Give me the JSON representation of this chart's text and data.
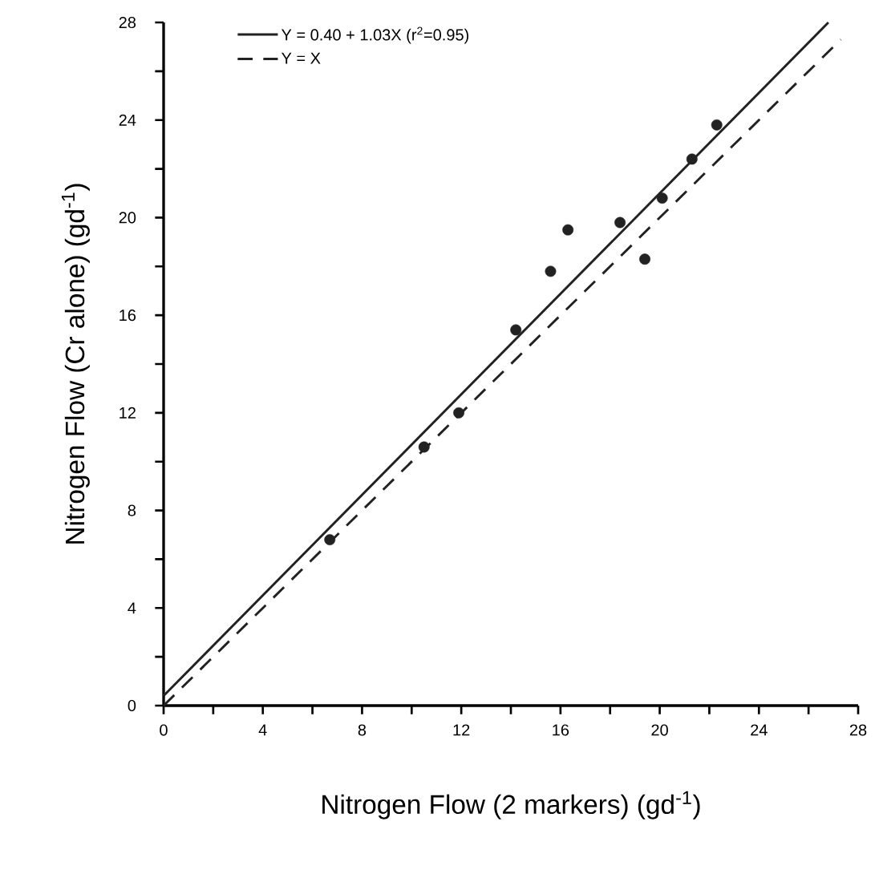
{
  "chart_data": {
    "type": "scatter",
    "xlabel": "Nitrogen Flow (2 markers)  (gd$^{-1}$)",
    "ylabel": "Nitrogen Flow  (Cr alone)  (gd$^{-1}$)",
    "xlim": [
      0,
      28
    ],
    "ylim": [
      0,
      28
    ],
    "xticks": [
      0,
      {
        "value": 2,
        "label": null
      },
      4,
      {
        "value": 6,
        "label": null
      },
      8,
      {
        "value": 10,
        "label": null
      },
      12,
      {
        "value": 14,
        "label": null
      },
      16,
      {
        "value": 18,
        "label": null
      },
      20,
      {
        "value": 22,
        "label": null
      },
      24,
      {
        "value": 26,
        "label": null
      },
      28
    ],
    "yticks": [
      0,
      {
        "value": 2,
        "label": null
      },
      4,
      {
        "value": 6,
        "label": null
      },
      8,
      {
        "value": 10,
        "label": null
      },
      12,
      {
        "value": 14,
        "label": null
      },
      16,
      {
        "value": 18,
        "label": null
      },
      20,
      {
        "value": 22,
        "label": null
      },
      24,
      {
        "value": 26,
        "label": null
      },
      28
    ],
    "grid": false,
    "legend": "top left",
    "series": [
      {
        "marker": "circle",
        "color": "#222222",
        "x": [
          6.7,
          10.5,
          11.9,
          14.2,
          15.6,
          16.3,
          18.4,
          19.4,
          20.1,
          21.3,
          22.3
        ],
        "values": [
          6.8,
          10.6,
          12.0,
          15.4,
          17.8,
          19.5,
          19.8,
          18.3,
          20.8,
          22.4,
          23.8
        ]
      },
      {
        "type": "line",
        "name": "Y = 0.40 + 1.03X  (r$^{2}$=0.95)",
        "color": "#222222",
        "marker": "none",
        "line_style": "solid",
        "x": [
          0,
          26.8
        ],
        "values": [
          0.4,
          28.0
        ]
      },
      {
        "type": "line",
        "name": "Y = X",
        "color": "#222222",
        "marker": "none",
        "line_style": "dashed",
        "x": [
          0,
          27.3
        ],
        "values": [
          0,
          27.3
        ]
      }
    ]
  }
}
